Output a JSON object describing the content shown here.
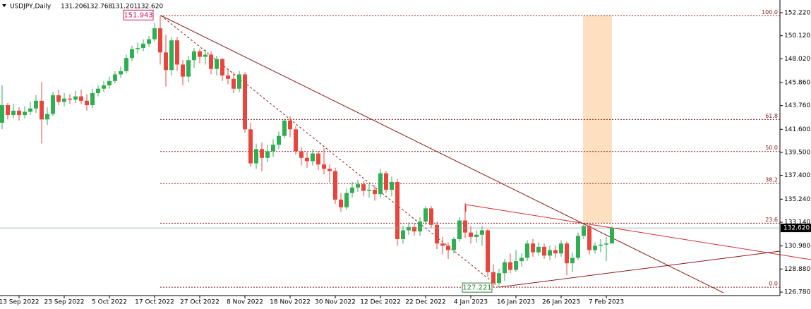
{
  "chart_data": {
    "type": "candlestick",
    "title": "USDJPY,Daily",
    "quote_labels": [
      "131.206",
      "132.768",
      "131.201",
      "132.620"
    ],
    "categories": [
      null,
      null,
      null,
      "13 Sep 2022",
      null,
      null,
      null,
      null,
      null,
      null,
      null,
      "23 Sep 2022",
      null,
      null,
      null,
      null,
      null,
      null,
      null,
      "5 Oct 2022",
      null,
      null,
      null,
      null,
      null,
      null,
      null,
      "17 Oct 2022",
      null,
      null,
      null,
      null,
      null,
      null,
      null,
      "27 Oct 2022",
      null,
      null,
      null,
      null,
      null,
      null,
      null,
      "8 Nov 2022",
      null,
      null,
      null,
      null,
      null,
      null,
      null,
      "18 Nov 2022",
      null,
      null,
      null,
      null,
      null,
      null,
      null,
      "30 Nov 2022",
      null,
      null,
      null,
      null,
      null,
      null,
      null,
      "12 Dec 2022",
      null,
      null,
      null,
      null,
      null,
      null,
      null,
      "22 Dec 2022",
      null,
      null,
      null,
      null,
      null,
      null,
      null,
      "4 Jan 2023",
      null,
      null,
      null,
      null,
      null,
      null,
      null,
      "16 Jan 2023",
      null,
      null,
      null,
      null,
      null,
      null,
      null,
      "26 Jan 2023",
      null,
      null,
      null,
      null,
      null,
      null,
      null,
      "7 Feb 2023",
      null
    ],
    "open": [
      142.2,
      143.8,
      142.9,
      143.3,
      142.9,
      143.2,
      143.5,
      144.2,
      142.5,
      143.0,
      144.7,
      144.1,
      144.4,
      144.3,
      144.6,
      144.2,
      143.8,
      144.9,
      145.3,
      145.6,
      146.0,
      146.6,
      146.9,
      148.1,
      148.9,
      149.0,
      149.4,
      149.8,
      150.8,
      148.6,
      147.0,
      149.7,
      147.5,
      146.4,
      147.9,
      148.7,
      148.2,
      148.4,
      147.1,
      148.0,
      146.5,
      146.2,
      145.3,
      146.6,
      141.6,
      138.5,
      139.8,
      139.0,
      139.6,
      140.2,
      141.0,
      142.4,
      141.6,
      139.6,
      139.0,
      138.7,
      139.4,
      138.4,
      138.0,
      137.8,
      135.2,
      134.5,
      135.8,
      136.3,
      136.6,
      136.0,
      136.1,
      135.7,
      137.6,
      136.1,
      136.8,
      131.6,
      132.4,
      132.7,
      132.3,
      133.2,
      134.4,
      132.9,
      131.2,
      131.0,
      130.6,
      131.6,
      133.3,
      132.2,
      131.8,
      132.0,
      132.4,
      128.6,
      127.6,
      128.5,
      129.5,
      128.8,
      129.6,
      129.9,
      131.2,
      130.4,
      130.9,
      130.1,
      130.6,
      130.3,
      131.2,
      129.4,
      129.9,
      131.9,
      132.8,
      130.6,
      131.0,
      131.1,
      131.206
    ],
    "high": [
      145.6,
      144.0,
      143.9,
      143.6,
      143.7,
      144.1,
      144.7,
      145.9,
      143.6,
      145.0,
      145.2,
      144.9,
      144.8,
      145.1,
      145.2,
      144.8,
      145.3,
      145.6,
      146.0,
      146.4,
      146.9,
      147.3,
      148.4,
      149.2,
      149.5,
      149.8,
      150.1,
      151.3,
      151.943,
      150.2,
      150.0,
      150.0,
      147.9,
      148.3,
      149.0,
      148.9,
      148.9,
      148.7,
      148.3,
      148.1,
      147.0,
      146.8,
      146.9,
      146.8,
      142.2,
      140.3,
      140.4,
      140.2,
      140.7,
      141.4,
      142.6,
      142.8,
      141.9,
      140.0,
      139.5,
      139.8,
      139.6,
      139.9,
      138.4,
      138.1,
      135.8,
      136.2,
      136.8,
      137.0,
      136.9,
      136.6,
      136.5,
      138.0,
      137.8,
      137.3,
      137.1,
      132.8,
      133.1,
      133.0,
      133.6,
      134.6,
      134.6,
      133.2,
      131.8,
      131.3,
      131.8,
      133.6,
      134.9,
      132.8,
      132.4,
      132.8,
      132.5,
      129.3,
      128.9,
      129.8,
      130.3,
      130.6,
      130.3,
      131.5,
      131.6,
      131.3,
      131.2,
      131.0,
      131.0,
      131.5,
      131.4,
      130.4,
      132.2,
      132.95,
      132.9,
      131.3,
      131.6,
      131.8,
      132.768
    ],
    "low": [
      141.6,
      142.5,
      142.6,
      142.4,
      142.6,
      142.9,
      143.1,
      140.3,
      142.0,
      142.8,
      143.8,
      143.7,
      143.9,
      144.0,
      143.9,
      143.3,
      143.5,
      144.6,
      145.0,
      145.3,
      145.8,
      146.3,
      146.7,
      147.8,
      148.5,
      148.7,
      149.1,
      149.6,
      147.5,
      145.5,
      146.5,
      146.9,
      145.6,
      145.9,
      147.2,
      147.6,
      147.5,
      146.6,
      146.5,
      146.0,
      145.7,
      144.9,
      145.0,
      141.3,
      138.2,
      138.0,
      137.8,
      138.6,
      139.1,
      139.8,
      140.8,
      140.9,
      139.3,
      138.3,
      138.1,
      138.3,
      137.9,
      137.5,
      136.8,
      134.8,
      134.1,
      134.3,
      135.4,
      135.9,
      135.5,
      135.4,
      135.1,
      135.4,
      135.8,
      135.5,
      131.0,
      131.2,
      132.0,
      131.9,
      131.9,
      132.9,
      132.6,
      130.7,
      130.2,
      129.8,
      130.3,
      131.4,
      131.7,
      131.2,
      131.3,
      131.0,
      128.2,
      127.221,
      127.4,
      127.8,
      128.5,
      128.6,
      129.1,
      129.6,
      130.0,
      130.1,
      129.8,
      129.7,
      129.9,
      130.0,
      128.3,
      128.6,
      129.7,
      131.6,
      130.2,
      130.3,
      130.4,
      129.6,
      131.201
    ],
    "close": [
      143.8,
      142.9,
      143.3,
      142.9,
      143.2,
      143.5,
      144.2,
      142.5,
      143.0,
      144.7,
      144.1,
      144.4,
      144.3,
      144.6,
      144.2,
      143.8,
      144.9,
      145.3,
      145.6,
      146.0,
      146.6,
      146.9,
      148.1,
      148.9,
      149.0,
      149.4,
      149.8,
      150.8,
      148.6,
      147.0,
      149.7,
      147.5,
      146.4,
      147.9,
      148.7,
      148.2,
      148.4,
      147.1,
      148.0,
      146.5,
      146.2,
      145.3,
      146.6,
      141.6,
      138.5,
      139.8,
      139.0,
      139.6,
      140.2,
      141.0,
      142.4,
      141.6,
      139.6,
      139.0,
      138.7,
      139.4,
      138.4,
      138.0,
      137.8,
      135.2,
      134.5,
      135.8,
      136.3,
      136.6,
      136.0,
      136.1,
      135.7,
      137.6,
      136.1,
      136.8,
      131.6,
      132.4,
      132.7,
      132.3,
      133.2,
      134.4,
      132.9,
      131.2,
      131.0,
      130.6,
      131.6,
      133.3,
      132.2,
      131.8,
      132.0,
      132.4,
      128.6,
      127.6,
      128.5,
      129.5,
      128.8,
      129.6,
      129.9,
      131.2,
      130.4,
      130.9,
      130.1,
      130.6,
      130.3,
      131.2,
      129.4,
      129.9,
      131.9,
      132.8,
      130.6,
      131.0,
      131.1,
      131.2,
      132.62
    ],
    "up_color": "#2fae52",
    "down_color": "#e8453c",
    "ylim": [
      126.78,
      152.22
    ],
    "yticks": [
      {
        "value": 152.22,
        "label": "152.220"
      },
      {
        "value": 150.12,
        "label": "150.120"
      },
      {
        "value": 148.02,
        "label": "148.020"
      },
      {
        "value": 145.86,
        "label": "145.860"
      },
      {
        "value": 143.76,
        "label": "143.760"
      },
      {
        "value": 141.6,
        "label": "141.600"
      },
      {
        "value": 139.5,
        "label": "139.500"
      },
      {
        "value": 137.4,
        "label": "137.400"
      },
      {
        "value": 135.24,
        "label": "135.240"
      },
      {
        "value": 133.14,
        "label": "133.140"
      },
      {
        "value": 130.98,
        "label": "130.980"
      },
      {
        "value": 128.88,
        "label": "128.880"
      },
      {
        "value": 126.78,
        "label": "126.780"
      }
    ],
    "fib_levels": [
      {
        "value": 100,
        "label": "100.0"
      },
      61.8,
      {
        "value": 50,
        "label": "50.0"
      },
      38.2,
      23.6,
      {
        "value": 0,
        "label": "0.0"
      }
    ]
  }
}
